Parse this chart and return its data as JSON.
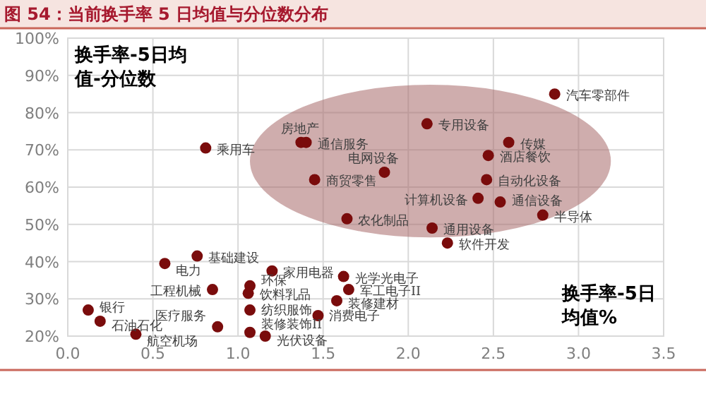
{
  "chart_data": {
    "type": "scatter",
    "title": "图 54：当前换手率 5 日均值与分位数分布",
    "xlabel": "换手率-5日均值%",
    "ylabel": "换手率-5日均值-分位数",
    "xlim": [
      0,
      3.5
    ],
    "ylim": [
      20,
      100
    ],
    "xticks": [
      {
        "value": 0,
        "label": "0.0"
      },
      0.5,
      {
        "value": 1,
        "label": "1.0"
      },
      1.5,
      {
        "value": 2,
        "label": "2.0"
      },
      2.5,
      {
        "value": 3,
        "label": "3.0"
      },
      3.5
    ],
    "yticks": [
      {
        "value": 20,
        "label": "20%"
      },
      {
        "value": 30,
        "label": "30%"
      },
      {
        "value": 40,
        "label": "40%"
      },
      {
        "value": 50,
        "label": "50%"
      },
      {
        "value": 60,
        "label": "60%"
      },
      {
        "value": 70,
        "label": "70%"
      },
      {
        "value": 80,
        "label": "80%"
      },
      {
        "value": 90,
        "label": "90%"
      },
      {
        "value": 100,
        "label": "100%"
      }
    ],
    "grid": true,
    "marker": "circle",
    "series": [
      {
        "color": "#7a0c0c",
        "x": [
          2.86,
          2.11,
          2.59,
          2.47,
          1.37,
          1.4,
          1.86,
          1.45,
          2.46,
          2.41,
          2.54,
          2.79,
          1.64,
          2.14,
          2.23,
          0.81,
          0.76,
          0.57,
          1.2,
          1.62,
          1.65,
          1.58,
          1.47,
          1.07,
          1.06,
          0.85,
          1.07,
          1.07,
          1.16,
          0.88,
          0.4,
          0.19,
          0.12
        ],
        "values": [
          85,
          77,
          72,
          68.5,
          72,
          72,
          64,
          62,
          62,
          57,
          56,
          52.5,
          51.5,
          49,
          45,
          70.5,
          41.5,
          39.5,
          37.5,
          36,
          32.5,
          29.5,
          25.5,
          33.5,
          31.5,
          32.5,
          27,
          21,
          20,
          22.5,
          20.5,
          24,
          27
        ],
        "value_labels": [
          "汽车零部件",
          "专用设备",
          "传媒",
          "酒店餐饮",
          "房地产",
          "通信服务",
          "电网设备",
          "商贸零售",
          "自动化设备",
          "计算机设备",
          "通信设备",
          "半导体",
          "农化制品",
          "通用设备",
          "软件开发",
          "乘用车",
          "基础建设",
          "电力",
          "家用电器",
          "光学光电子",
          "军工电子II",
          "装修建材",
          "消费电子",
          "环保",
          "饮料乳品",
          "工程机械",
          "纺织服饰",
          "装修装饰II",
          "光伏设备",
          "医疗服务",
          "航空机场",
          "石油石化",
          "银行"
        ]
      }
    ]
  }
}
